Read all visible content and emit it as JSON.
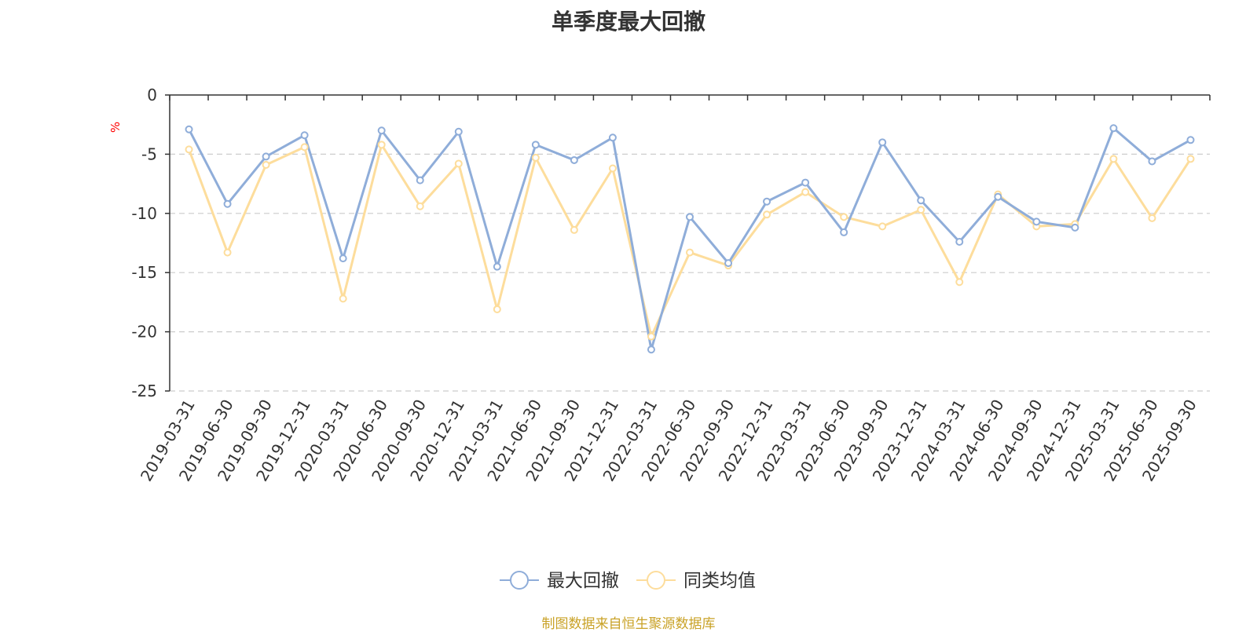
{
  "chart_data": {
    "type": "line",
    "title": "单季度最大回撤",
    "ylabel": "%",
    "xlabel": "",
    "ylim": [
      -25,
      0
    ],
    "yticks": [
      0,
      -5,
      -10,
      -15,
      -20,
      -25
    ],
    "grid": true,
    "legend_position": "bottom-center",
    "categories": [
      "2019-03-31",
      "2019-06-30",
      "2019-09-30",
      "2019-12-31",
      "2020-03-31",
      "2020-06-30",
      "2020-09-30",
      "2020-12-31",
      "2021-03-31",
      "2021-06-30",
      "2021-09-30",
      "2021-12-31",
      "2022-03-31",
      "2022-06-30",
      "2022-09-30",
      "2022-12-31",
      "2023-03-31",
      "2023-06-30",
      "2023-09-30",
      "2023-12-31",
      "2024-03-31",
      "2024-06-30",
      "2024-09-30",
      "2024-12-31",
      "2025-03-31",
      "2025-06-30",
      "2025-09-30"
    ],
    "series": [
      {
        "name": "最大回撤",
        "color": "#8fadd9",
        "values": [
          -2.9,
          -9.2,
          -5.2,
          -3.4,
          -13.8,
          -3.0,
          -7.2,
          -3.1,
          -14.5,
          -4.2,
          -5.5,
          -3.6,
          -21.5,
          -10.3,
          -14.2,
          -9.0,
          -7.4,
          -11.6,
          -4.0,
          -8.9,
          -12.4,
          -8.6,
          -10.7,
          -11.2,
          -2.8,
          -5.6,
          -3.8
        ]
      },
      {
        "name": "同类均值",
        "color": "#fddd9c",
        "values": [
          -4.6,
          -13.3,
          -5.9,
          -4.4,
          -17.2,
          -4.2,
          -9.4,
          -5.8,
          -18.1,
          -5.3,
          -11.4,
          -6.2,
          -20.4,
          -13.3,
          -14.4,
          -10.1,
          -8.2,
          -10.3,
          -11.1,
          -9.7,
          -15.8,
          -8.4,
          -11.1,
          -10.9,
          -5.4,
          -10.4,
          -5.4
        ]
      }
    ]
  },
  "source_text": "制图数据来自恒生聚源数据库"
}
